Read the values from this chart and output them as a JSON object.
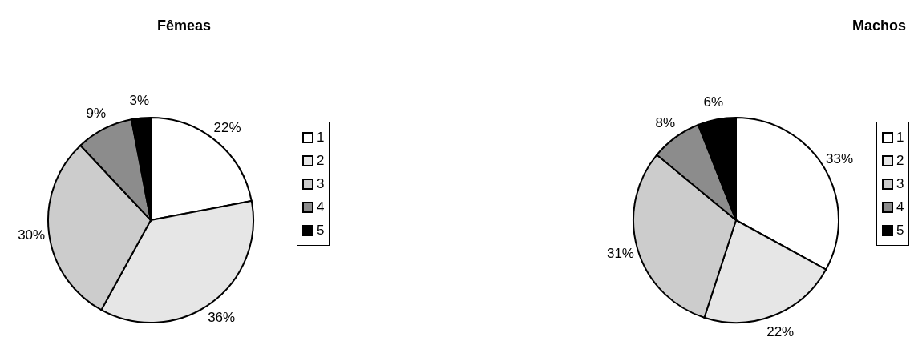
{
  "chart_data": [
    {
      "type": "pie",
      "title": "Fêmeas",
      "categories": [
        "1",
        "2",
        "3",
        "4",
        "5"
      ],
      "values": [
        22,
        36,
        30,
        9,
        3
      ],
      "value_labels": [
        "22%",
        "36%",
        "30%",
        "9%",
        "3%"
      ],
      "colors": [
        "#ffffff",
        "#e6e6e6",
        "#cccccc",
        "#8c8c8c",
        "#000000"
      ],
      "legend": "right"
    },
    {
      "type": "pie",
      "title": "Machos",
      "categories": [
        "1",
        "2",
        "3",
        "4",
        "5"
      ],
      "values": [
        33,
        22,
        31,
        8,
        6
      ],
      "value_labels": [
        "33%",
        "22%",
        "31%",
        "8%",
        "6%"
      ],
      "colors": [
        "#ffffff",
        "#e6e6e6",
        "#cccccc",
        "#8c8c8c",
        "#000000"
      ],
      "legend": "right"
    }
  ]
}
